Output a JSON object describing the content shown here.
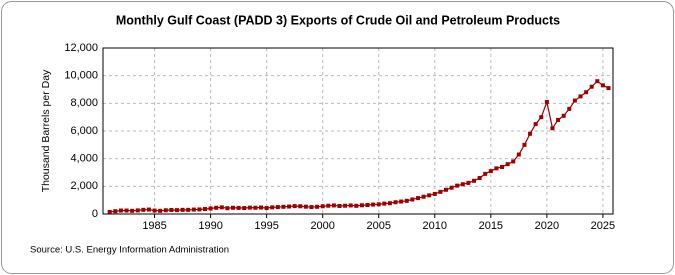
{
  "chart_data": {
    "type": "line",
    "title": "Monthly Gulf Coast (PADD 3) Exports of Crude Oil and Petroleum Products",
    "y_label": "Thousand Barrels per Day",
    "source": "Source: U.S. Energy Information Administration",
    "color": "#9e0000",
    "grid": true,
    "x": [
      1981.0,
      1981.5,
      1982.0,
      1982.5,
      1983.0,
      1983.5,
      1984.0,
      1984.5,
      1985.0,
      1985.5,
      1986.0,
      1986.5,
      1987.0,
      1987.5,
      1988.0,
      1988.5,
      1989.0,
      1989.5,
      1990.0,
      1990.5,
      1991.0,
      1991.5,
      1992.0,
      1992.5,
      1993.0,
      1993.5,
      1994.0,
      1994.5,
      1995.0,
      1995.5,
      1996.0,
      1996.5,
      1997.0,
      1997.5,
      1998.0,
      1998.5,
      1999.0,
      1999.5,
      2000.0,
      2000.5,
      2001.0,
      2001.5,
      2002.0,
      2002.5,
      2003.0,
      2003.5,
      2004.0,
      2004.5,
      2005.0,
      2005.5,
      2006.0,
      2006.5,
      2007.0,
      2007.5,
      2008.0,
      2008.5,
      2009.0,
      2009.5,
      2010.0,
      2010.5,
      2011.0,
      2011.5,
      2012.0,
      2012.5,
      2013.0,
      2013.5,
      2014.0,
      2014.5,
      2015.0,
      2015.5,
      2016.0,
      2016.5,
      2017.0,
      2017.5,
      2018.0,
      2018.5,
      2019.0,
      2019.5,
      2020.0,
      2020.5,
      2021.0,
      2021.5,
      2022.0,
      2022.5,
      2023.0,
      2023.5,
      2024.0,
      2024.5,
      2025.0,
      2025.5
    ],
    "values": [
      150,
      200,
      250,
      250,
      230,
      260,
      300,
      320,
      250,
      230,
      270,
      290,
      280,
      300,
      300,
      320,
      330,
      360,
      400,
      450,
      480,
      420,
      450,
      440,
      430,
      460,
      450,
      470,
      430,
      480,
      500,
      520,
      540,
      570,
      560,
      530,
      500,
      520,
      560,
      600,
      620,
      580,
      600,
      620,
      590,
      630,
      650,
      680,
      700,
      750,
      780,
      850,
      900,
      950,
      1050,
      1150,
      1250,
      1350,
      1450,
      1600,
      1750,
      1900,
      2050,
      2150,
      2250,
      2400,
      2600,
      2900,
      3100,
      3300,
      3400,
      3600,
      3800,
      4300,
      5000,
      5800,
      6500,
      7000,
      8100,
      6200,
      6800,
      7100,
      7600,
      8200,
      8500,
      8800,
      9200,
      9600,
      9300,
      9100
    ],
    "xlim": [
      1980.4,
      2025.9
    ],
    "xticks": [
      1985,
      1990,
      1995,
      2000,
      2005,
      2010,
      2015,
      2020,
      2025
    ],
    "ylim": [
      0,
      12000
    ],
    "yticks": [
      0,
      {
        "value": 2000,
        "label": "2,000"
      },
      {
        "value": 4000,
        "label": "4,000"
      },
      {
        "value": 6000,
        "label": "6,000"
      },
      {
        "value": 8000,
        "label": "8,000"
      },
      {
        "value": 10000,
        "label": "10,000"
      },
      {
        "value": 12000,
        "label": "12,000"
      }
    ]
  }
}
